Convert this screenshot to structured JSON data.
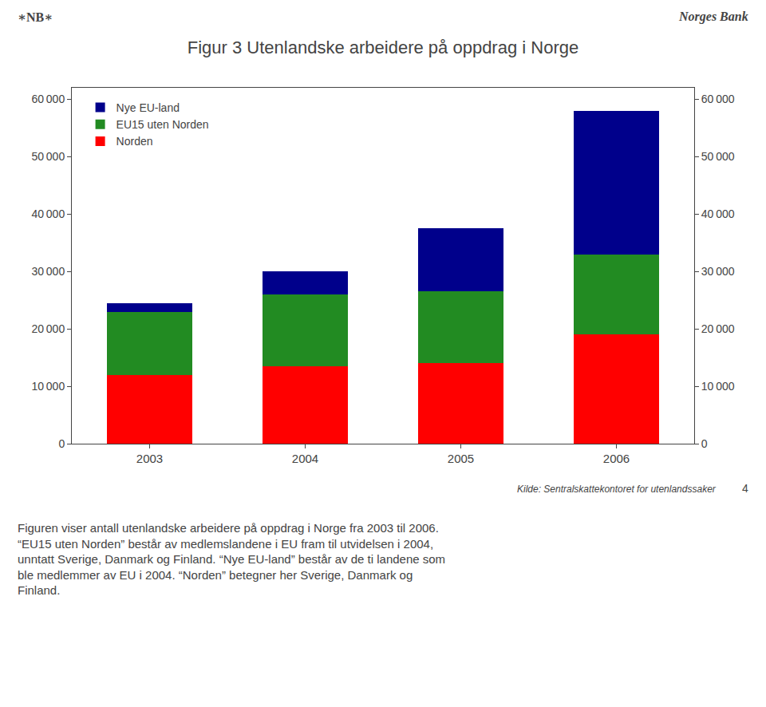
{
  "chart_data": {
    "type": "bar",
    "title": "Figur 3 Utenlandske arbeidere på oppdrag i Norge",
    "header": [
      "∗NB∗",
      "Norges Bank"
    ],
    "categories": [
      "2003",
      "2004",
      "2005",
      "2006"
    ],
    "series": [
      {
        "name": "Norden",
        "color": "#FF0000",
        "values": [
          12000,
          13500,
          14000,
          19000
        ]
      },
      {
        "name": "EU15 uten Norden",
        "color": "#228B22",
        "values": [
          11000,
          12500,
          12500,
          14000
        ]
      },
      {
        "name": "Nye EU-land",
        "color": "#00008B",
        "values": [
          1500,
          4000,
          11000,
          25000
        ]
      }
    ],
    "stacked": true,
    "legend": "upper left",
    "grid": false,
    "ylim": [
      0,
      62000
    ],
    "yticks": [
      0,
      {
        "value": 10000,
        "label": "10 000"
      },
      {
        "value": 20000,
        "label": "20 000"
      },
      {
        "value": 30000,
        "label": "30 000"
      },
      {
        "value": 40000,
        "label": "40 000"
      },
      {
        "value": 50000,
        "label": "50 000"
      },
      {
        "value": 60000,
        "label": "60 000"
      }
    ],
    "y2lim": [
      0,
      62000
    ],
    "y2ticks": [
      0,
      {
        "value": 10000,
        "label": "10 000"
      },
      {
        "value": 20000,
        "label": "20 000"
      },
      {
        "value": 30000,
        "label": "30 000"
      },
      {
        "value": 40000,
        "label": "40 000"
      },
      {
        "value": 50000,
        "label": "50 000"
      },
      {
        "value": 60000,
        "label": "60 000"
      }
    ],
    "source": "Kilde: Sentralskattekontoret for utenlandssaker",
    "page_number": "4",
    "body_text": [
      "Figuren viser antall utenlandske arbeidere på oppdrag i Norge fra 2003 til 2006.",
      "“EU15 uten Norden” består av medlemslandene i EU fram til utvidelsen i 2004,",
      "unntatt Sverige, Danmark og Finland. “Nye EU-land” består av de ti landene som",
      "ble medlemmer av EU i 2004. “Norden” betegner her Sverige, Danmark og",
      "Finland."
    ]
  }
}
